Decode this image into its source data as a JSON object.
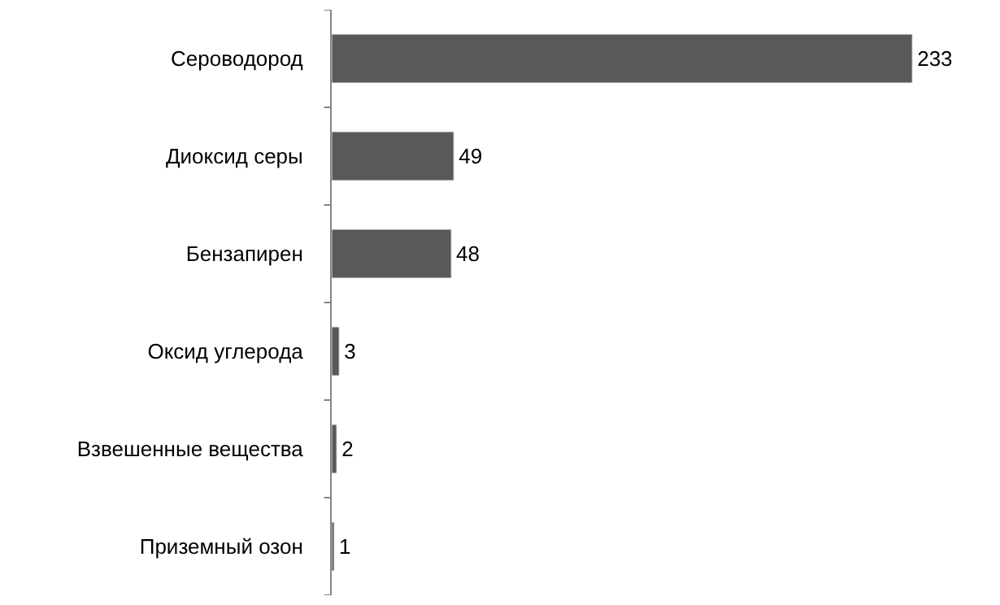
{
  "chart_data": {
    "type": "bar",
    "orientation": "horizontal",
    "categories": [
      "Сероводород",
      "Диоксид серы",
      "Бензапирен",
      "Оксид углерода",
      "Взвешенные вещества",
      "Приземный озон"
    ],
    "values": [
      233,
      49,
      48,
      3,
      2,
      1
    ],
    "color": "#595959",
    "data_labels": true
  }
}
